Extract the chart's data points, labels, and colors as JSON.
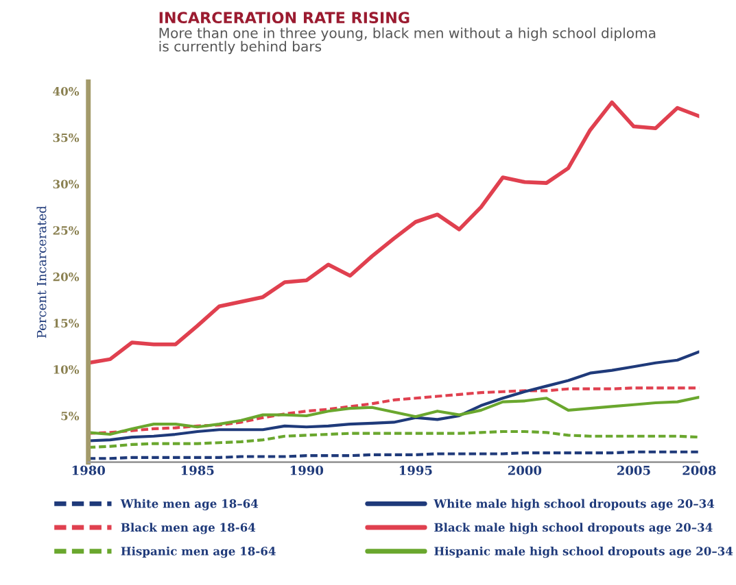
{
  "chart_data": {
    "type": "line",
    "title": "INCARCERATION RATE RISING",
    "subtitle": "More than one in three young, black men without a high school diploma\nis currently behind bars",
    "ylabel": "Percent Incarcerated",
    "x": [
      1980,
      1981,
      1982,
      1983,
      1984,
      1985,
      1986,
      1987,
      1988,
      1989,
      1990,
      1991,
      1992,
      1993,
      1994,
      1995,
      1996,
      1997,
      1998,
      1999,
      2000,
      2001,
      2002,
      2003,
      2004,
      2005,
      2006,
      2007,
      2008
    ],
    "series": [
      {
        "name": "White men age 18–64",
        "color": "#1f3a7a",
        "line_style": "dashed",
        "values": [
          0.4,
          0.4,
          0.5,
          0.5,
          0.5,
          0.5,
          0.5,
          0.6,
          0.6,
          0.6,
          0.7,
          0.7,
          0.7,
          0.8,
          0.8,
          0.8,
          0.9,
          0.9,
          0.9,
          0.9,
          1.0,
          1.0,
          1.0,
          1.0,
          1.0,
          1.1,
          1.1,
          1.1,
          1.1
        ]
      },
      {
        "name": "Black men age 18-64",
        "color": "#e0404f",
        "line_style": "dashed",
        "values": [
          3.1,
          3.2,
          3.4,
          3.6,
          3.7,
          3.9,
          4.0,
          4.3,
          4.8,
          5.2,
          5.5,
          5.7,
          6.0,
          6.3,
          6.7,
          6.9,
          7.1,
          7.3,
          7.5,
          7.6,
          7.7,
          7.7,
          7.9,
          7.9,
          7.9,
          8.0,
          8.0,
          8.0,
          8.0
        ]
      },
      {
        "name": "Hispanic men age 18-64",
        "color": "#6aa72e",
        "line_style": "dashed",
        "values": [
          1.6,
          1.7,
          1.9,
          2.0,
          2.0,
          2.0,
          2.1,
          2.2,
          2.4,
          2.8,
          2.9,
          3.0,
          3.1,
          3.1,
          3.1,
          3.1,
          3.1,
          3.1,
          3.2,
          3.3,
          3.3,
          3.2,
          2.9,
          2.8,
          2.8,
          2.8,
          2.8,
          2.8,
          2.7
        ]
      },
      {
        "name": "White male high school dropouts age 20–34",
        "color": "#1f3a7a",
        "line_style": "solid",
        "values": [
          2.3,
          2.4,
          2.7,
          2.8,
          3.0,
          3.3,
          3.5,
          3.5,
          3.5,
          3.9,
          3.8,
          3.9,
          4.1,
          4.2,
          4.3,
          4.8,
          4.6,
          5.0,
          6.1,
          6.9,
          7.6,
          8.2,
          8.8,
          9.6,
          9.9,
          10.3,
          10.7,
          11.0,
          11.9
        ]
      },
      {
        "name": "Black male high school dropouts age 20–34",
        "color": "#e0404f",
        "line_style": "solid",
        "values": [
          10.7,
          11.1,
          12.9,
          12.7,
          12.7,
          14.7,
          16.8,
          17.3,
          17.8,
          19.4,
          19.6,
          21.3,
          20.1,
          22.2,
          24.1,
          25.9,
          26.7,
          25.1,
          27.5,
          30.7,
          30.2,
          30.1,
          31.7,
          35.8,
          38.8,
          36.2,
          36.0,
          38.2,
          37.3
        ]
      },
      {
        "name": "Hispanic male high school dropouts age 20–34",
        "color": "#6aa72e",
        "line_style": "solid",
        "values": [
          3.2,
          3.0,
          3.6,
          4.1,
          4.1,
          3.8,
          4.1,
          4.5,
          5.1,
          5.1,
          5.0,
          5.5,
          5.8,
          5.9,
          5.4,
          4.9,
          5.5,
          5.1,
          5.6,
          6.5,
          6.6,
          6.9,
          5.6,
          5.8,
          6.0,
          6.2,
          6.4,
          6.5,
          7.0
        ]
      }
    ],
    "xlim": [
      1980,
      2008
    ],
    "xticks": [
      1980,
      1985,
      1990,
      1995,
      2000,
      2005,
      2008
    ],
    "ylim": [
      0,
      41
    ],
    "yticks": [
      {
        "value": 0,
        "label": null
      },
      {
        "value": 5,
        "label": "5%"
      },
      {
        "value": 10,
        "label": "10%"
      },
      {
        "value": 15,
        "label": "15%"
      },
      {
        "value": 20,
        "label": "20%"
      },
      {
        "value": 25,
        "label": "25%"
      },
      {
        "value": 30,
        "label": "30%"
      },
      {
        "value": 35,
        "label": "35%"
      },
      {
        "value": 40,
        "label": "40%"
      }
    ],
    "grid": false,
    "legend": "bottom",
    "marker": "none"
  }
}
